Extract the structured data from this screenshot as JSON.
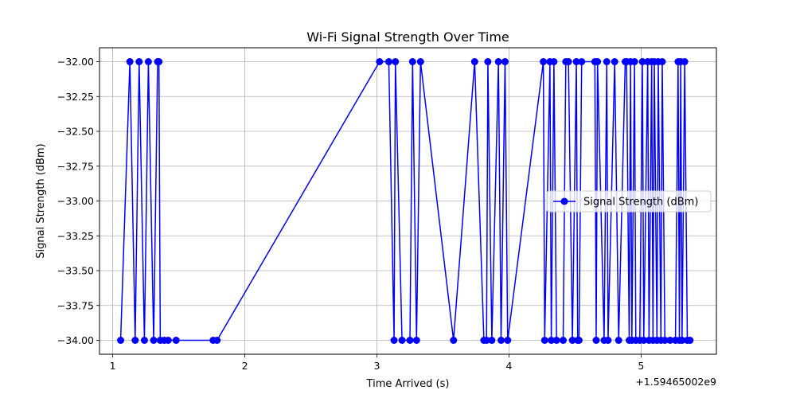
{
  "chart_data": {
    "type": "line",
    "title": "Wi-Fi Signal Strength Over Time",
    "xlabel": "Time Arrived (s)",
    "ylabel": "Signal Strength (dBm)",
    "x_offset_label": "+1.59465002e9",
    "xlim": [
      0.9,
      5.57
    ],
    "ylim": [
      -34.1,
      -31.9
    ],
    "x_ticks": [
      1,
      2,
      3,
      4,
      5
    ],
    "x_tick_labels": [
      "1",
      "2",
      "3",
      "4",
      "5"
    ],
    "y_ticks": [
      -32.0,
      -32.25,
      -32.5,
      -32.75,
      -33.0,
      -33.25,
      -33.5,
      -33.75,
      -34.0
    ],
    "y_tick_labels": [
      "−32.00",
      "−32.25",
      "−32.50",
      "−32.75",
      "−33.00",
      "−33.25",
      "−33.50",
      "−33.75",
      "−34.00"
    ],
    "grid": true,
    "legend_position": "center-right",
    "series": [
      {
        "name": "Signal Strength (dBm)",
        "color": "#0000ff",
        "marker": "circle",
        "x": [
          1.06,
          1.13,
          1.17,
          1.2,
          1.24,
          1.27,
          1.31,
          1.34,
          1.35,
          1.36,
          1.39,
          1.42,
          1.48,
          1.76,
          1.79,
          3.02,
          3.09,
          3.13,
          3.14,
          3.19,
          3.25,
          3.27,
          3.3,
          3.33,
          3.58,
          3.74,
          3.81,
          3.83,
          3.84,
          3.87,
          3.92,
          3.94,
          3.97,
          3.99,
          4.26,
          4.27,
          4.31,
          4.32,
          4.34,
          4.36,
          4.41,
          4.43,
          4.45,
          4.48,
          4.51,
          4.52,
          4.53,
          4.55,
          4.65,
          4.66,
          4.67,
          4.72,
          4.74,
          4.75,
          4.8,
          4.83,
          4.88,
          4.89,
          4.91,
          4.92,
          4.93,
          4.95,
          4.96,
          4.99,
          5.01,
          5.02,
          5.05,
          5.06,
          5.08,
          5.09,
          5.1,
          5.12,
          5.13,
          5.15,
          5.16,
          5.18,
          5.22,
          5.26,
          5.28,
          5.29,
          5.3,
          5.31,
          5.33,
          5.35,
          5.37
        ],
        "y": [
          -34,
          -32,
          -34,
          -32,
          -34,
          -32,
          -34,
          -32,
          -32,
          -34,
          -34,
          -34,
          -34,
          -34,
          -34,
          -32,
          -32,
          -34,
          -32,
          -34,
          -34,
          -32,
          -34,
          -32,
          -34,
          -32,
          -34,
          -34,
          -32,
          -34,
          -32,
          -34,
          -32,
          -34,
          -32,
          -34,
          -32,
          -34,
          -32,
          -34,
          -34,
          -32,
          -32,
          -34,
          -32,
          -34,
          -34,
          -32,
          -32,
          -34,
          -32,
          -34,
          -32,
          -34,
          -32,
          -34,
          -32,
          -32,
          -34,
          -32,
          -34,
          -32,
          -34,
          -34,
          -32,
          -34,
          -32,
          -34,
          -32,
          -34,
          -32,
          -34,
          -32,
          -34,
          -32,
          -34,
          -34,
          -34,
          -32,
          -34,
          -32,
          -34,
          -32,
          -34,
          -34
        ]
      }
    ]
  }
}
